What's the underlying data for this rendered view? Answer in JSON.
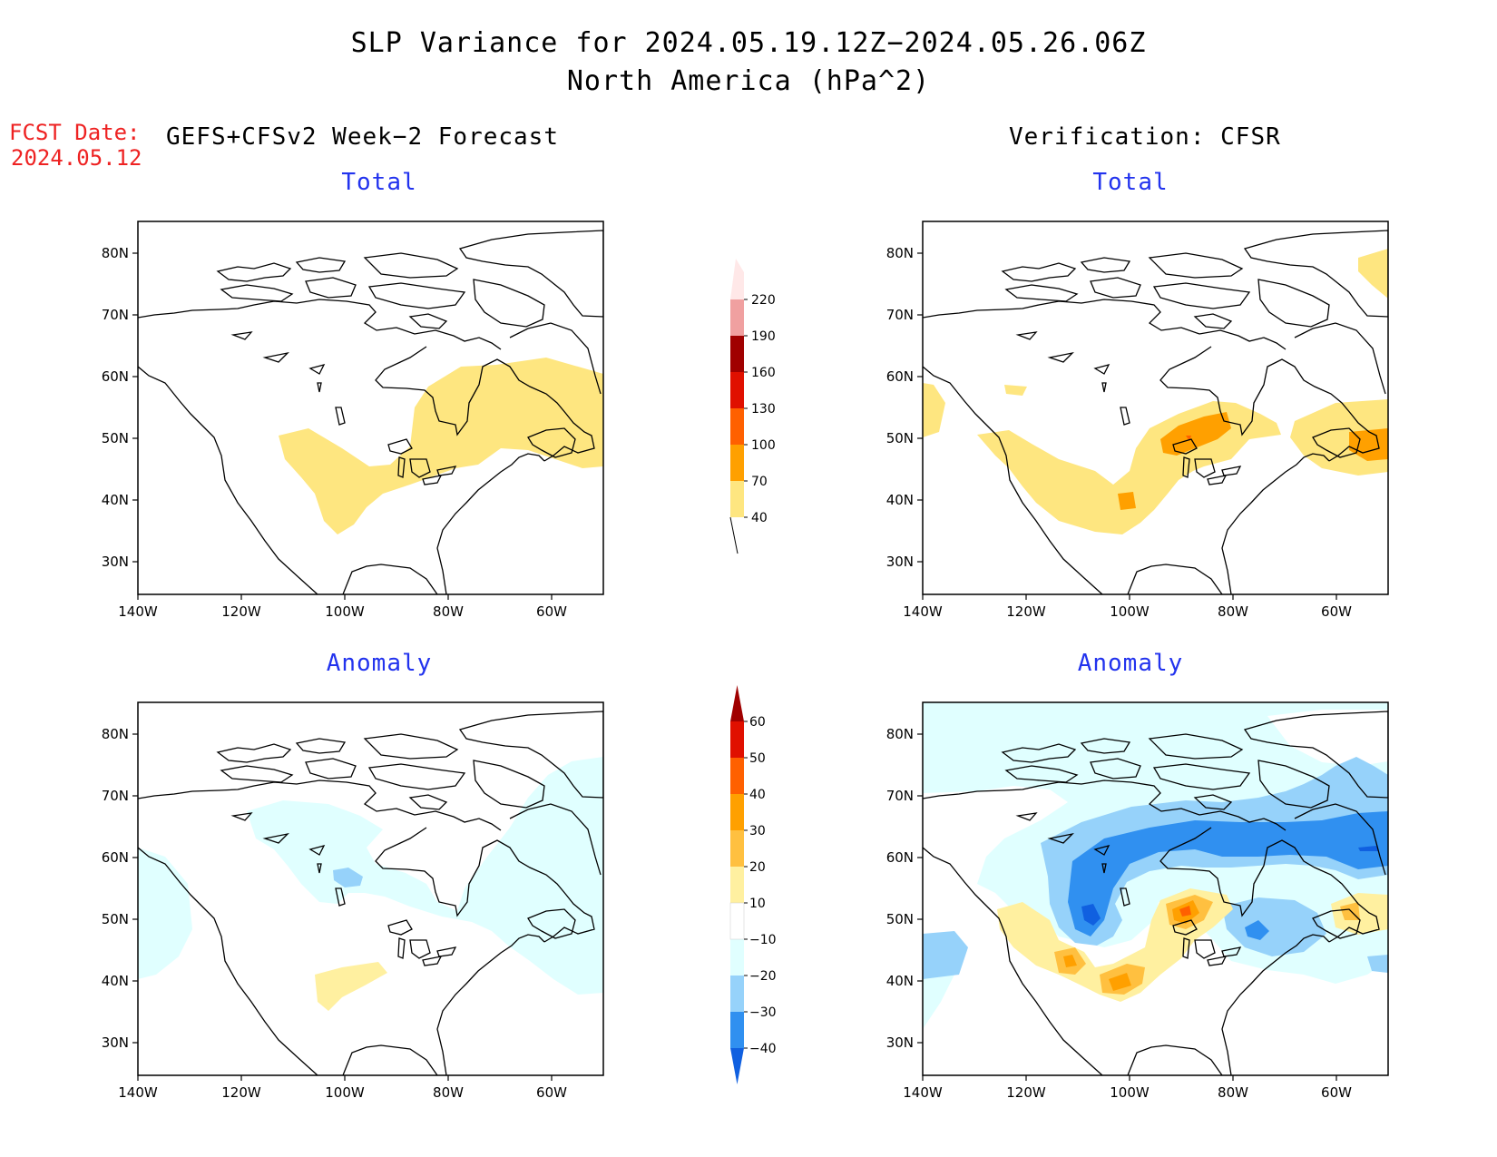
{
  "title": {
    "line1": "SLP Variance for 2024.05.19.12Z−2024.05.26.06Z",
    "line2": "North America (hPa^2)"
  },
  "fcst": {
    "label": "FCST Date:",
    "date": "2024.05.12"
  },
  "left_header": "GEFS+CFSv2 Week−2 Forecast",
  "right_header": "Verification: CFSR",
  "panels": [
    {
      "id": "fcst-total",
      "subtitle": "Total"
    },
    {
      "id": "verif-total",
      "subtitle": "Total"
    },
    {
      "id": "fcst-anomaly",
      "subtitle": "Anomaly"
    },
    {
      "id": "verif-anomaly",
      "subtitle": "Anomaly"
    }
  ],
  "map": {
    "lon_labels": [
      "140W",
      "120W",
      "100W",
      "80W",
      "60W"
    ],
    "lat_labels": [
      "80N",
      "70N",
      "60N",
      "50N",
      "40N",
      "30N"
    ]
  },
  "total_scale": {
    "labels": [
      "40",
      "70",
      "100",
      "130",
      "160",
      "190",
      "220"
    ],
    "colors": [
      "#fee680",
      "#ffa000",
      "#ff6000",
      "#e01000",
      "#a00000",
      "#f0a0a0",
      "#ffe8e8"
    ]
  },
  "anomaly_scale": {
    "labels": [
      "−40",
      "−30",
      "−20",
      "−10",
      "10",
      "20",
      "30",
      "40",
      "50",
      "60"
    ],
    "colors": [
      "#1060e0",
      "#3090f0",
      "#96d2fa",
      "#e0ffff",
      "#ffffff",
      "#fff0a0",
      "#ffc040",
      "#ffa000",
      "#ff6000",
      "#e01000",
      "#a00000"
    ]
  }
}
